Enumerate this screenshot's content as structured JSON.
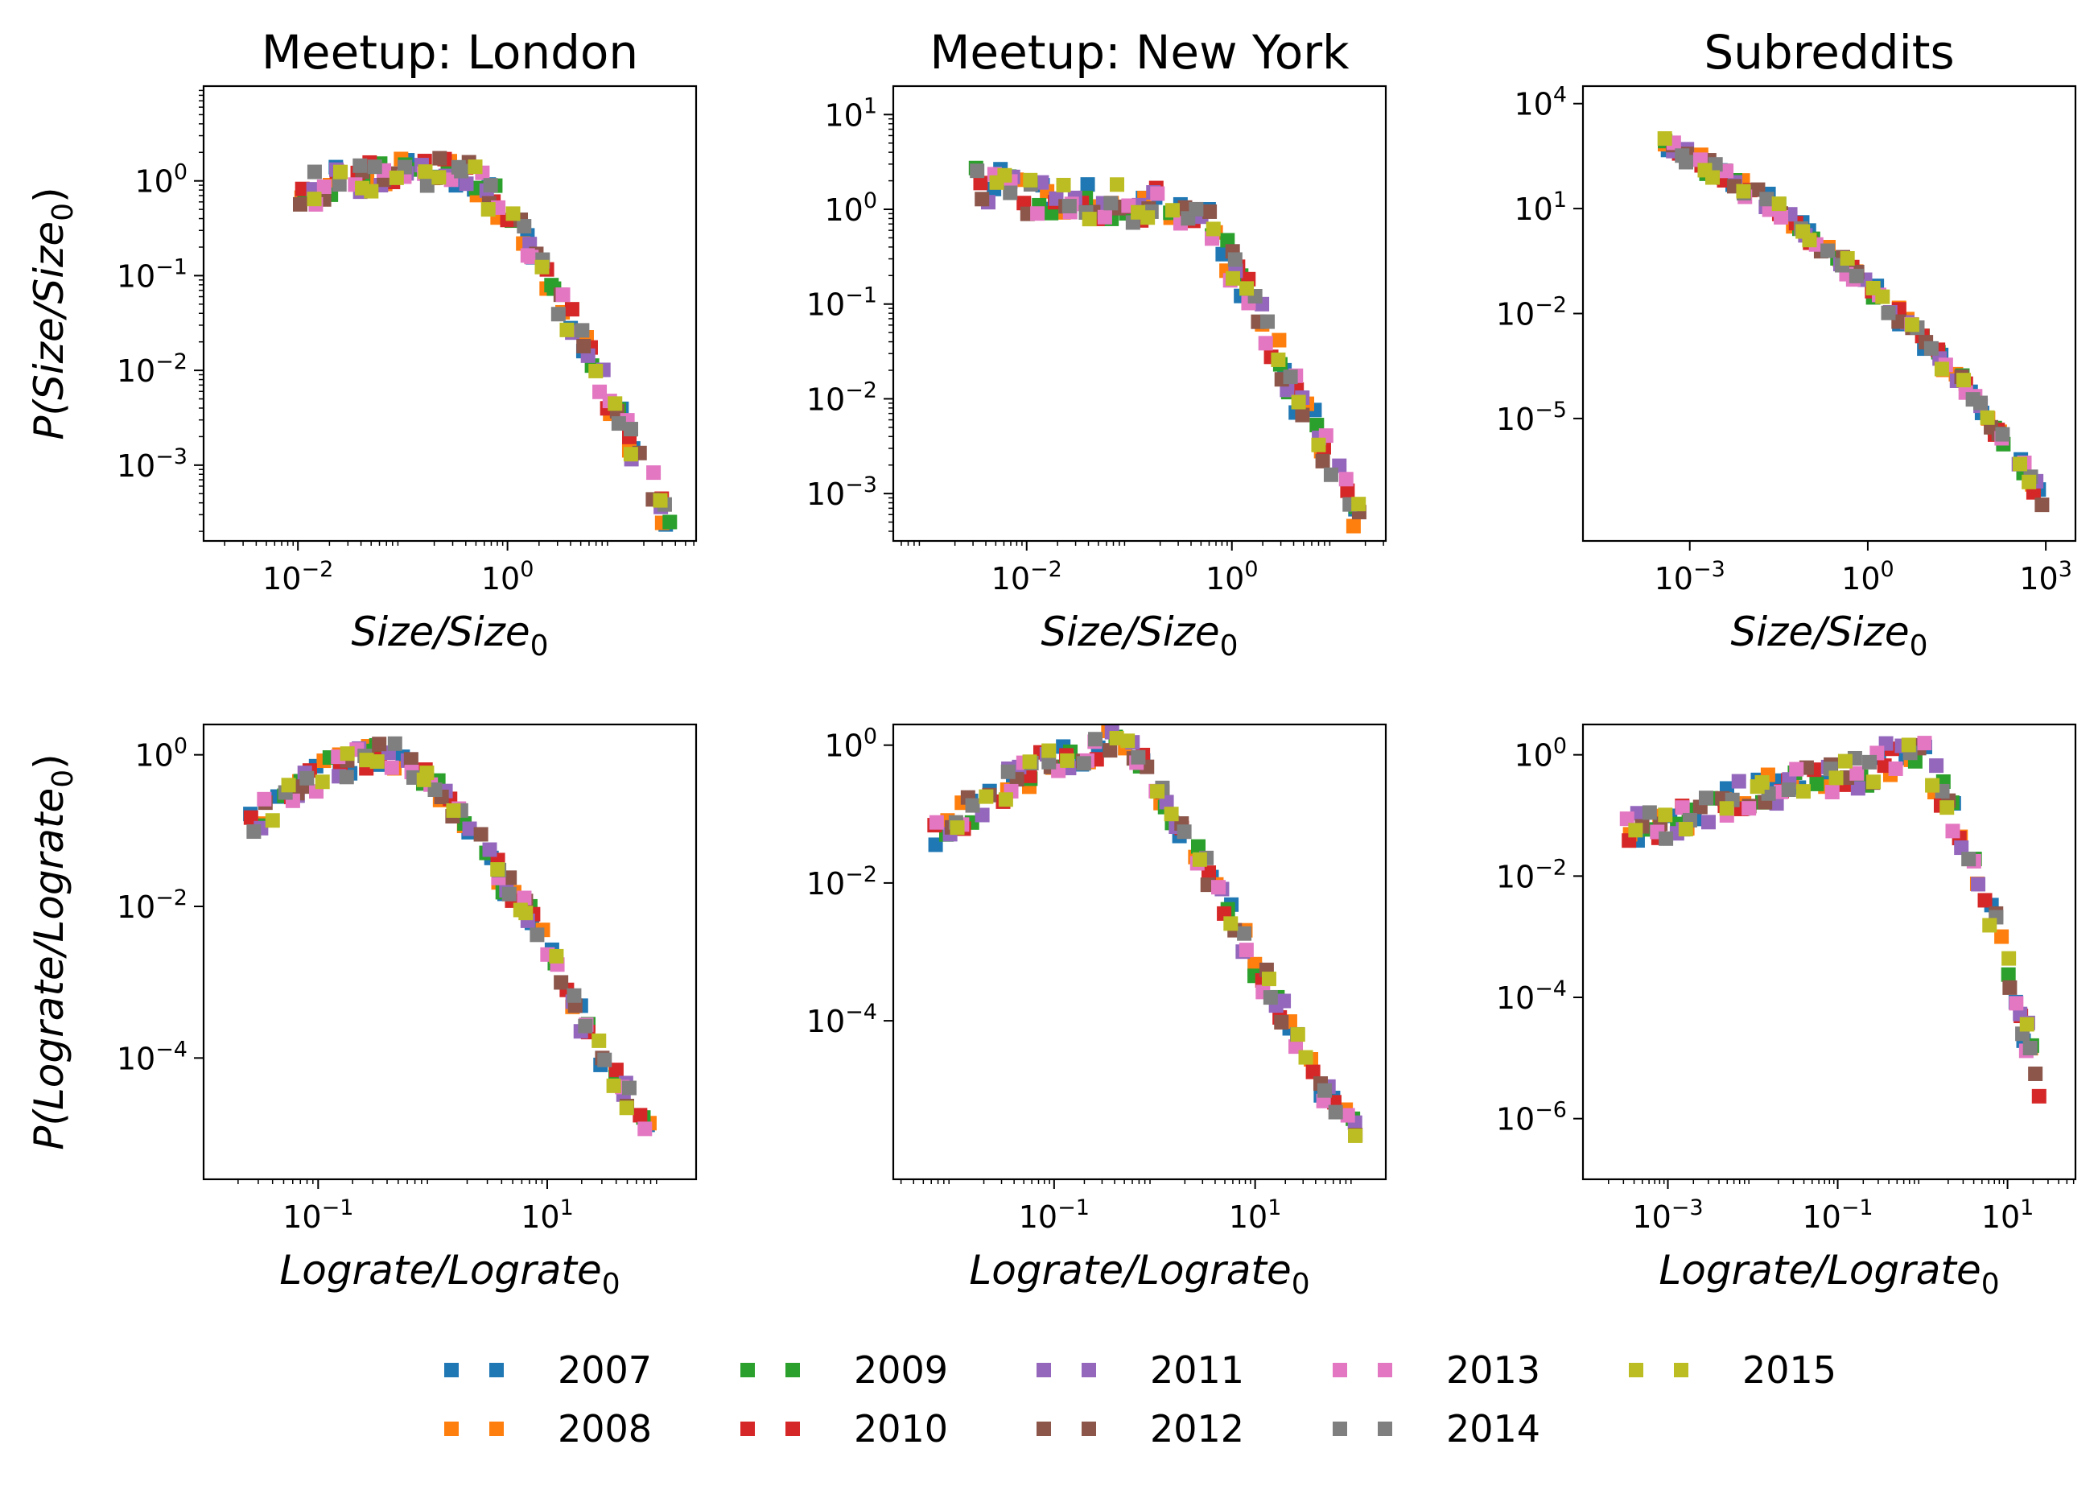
{
  "figure": {
    "legend": {
      "entries": [
        {
          "label": "2007",
          "color": "#1f77b4"
        },
        {
          "label": "2008",
          "color": "#ff7f0e"
        },
        {
          "label": "2009",
          "color": "#2ca02c"
        },
        {
          "label": "2010",
          "color": "#d62728"
        },
        {
          "label": "2011",
          "color": "#9467bd"
        },
        {
          "label": "2012",
          "color": "#8c564b"
        },
        {
          "label": "2013",
          "color": "#e377c2"
        },
        {
          "label": "2014",
          "color": "#7f7f7f"
        },
        {
          "label": "2015",
          "color": "#bcbd22"
        }
      ],
      "placement": "bottom-center",
      "columns": 5
    }
  },
  "chart_data": [
    {
      "type": "scatter",
      "title": "Meetup: London",
      "xlabel": "Size/Size",
      "xlabel_sub": "0",
      "ylabel": "P(Size/Size",
      "ylabel_sub": "0",
      "ylabel_tail": ")",
      "xscale": "log",
      "yscale": "log",
      "xlim_log10": [
        -2.9,
        1.8
      ],
      "ylim_log10": [
        -3.8,
        1.0
      ],
      "xticks_exp": [
        "−2",
        "0"
      ],
      "xticks_pos": [
        -2,
        0
      ],
      "yticks_exp": [
        "−3",
        "−2",
        "−1",
        "0"
      ],
      "yticks_pos": [
        -3,
        -2,
        -1,
        0
      ],
      "curve_log10": {
        "x": [
          -2.0,
          -1.5,
          -1.0,
          -0.6,
          -0.3,
          0.0,
          0.3,
          0.6,
          0.9,
          1.2,
          1.55
        ],
        "y": [
          -0.12,
          0.0,
          0.1,
          0.1,
          0.0,
          -0.35,
          -0.9,
          -1.5,
          -2.1,
          -2.8,
          -3.6
        ]
      },
      "x_range_log10": [
        -2.0,
        1.55
      ],
      "spread": 0.18,
      "grid": false
    },
    {
      "type": "scatter",
      "title": "Meetup: New York",
      "xlabel": "Size/Size",
      "xlabel_sub": "0",
      "ylabel": "",
      "ylabel_sub": "",
      "ylabel_tail": "",
      "xscale": "log",
      "yscale": "log",
      "xlim_log10": [
        -3.3,
        1.5
      ],
      "ylim_log10": [
        -3.5,
        1.3
      ],
      "xticks_exp": [
        "−2",
        "0"
      ],
      "xticks_pos": [
        -2,
        0
      ],
      "yticks_exp": [
        "−3",
        "−2",
        "−1",
        "0",
        "1"
      ],
      "yticks_pos": [
        -3,
        -2,
        -1,
        0,
        1
      ],
      "curve_log10": {
        "x": [
          -2.5,
          -2.0,
          -1.5,
          -1.0,
          -0.5,
          -0.2,
          0.0,
          0.3,
          0.6,
          0.9,
          1.2
        ],
        "y": [
          0.3,
          0.15,
          0.1,
          0.05,
          0.05,
          -0.1,
          -0.6,
          -1.2,
          -1.9,
          -2.5,
          -3.2
        ]
      },
      "x_range_log10": [
        -2.5,
        1.25
      ],
      "spread": 0.2,
      "grid": false
    },
    {
      "type": "scatter",
      "title": "Subreddits",
      "xlabel": "Size/Size",
      "xlabel_sub": "0",
      "ylabel": "",
      "ylabel_sub": "",
      "ylabel_tail": "",
      "xscale": "log",
      "yscale": "log",
      "xlim_log10": [
        -4.8,
        3.5
      ],
      "ylim_log10": [
        -8.5,
        4.5
      ],
      "xticks_exp": [
        "−3",
        "0",
        "3"
      ],
      "xticks_pos": [
        -3,
        0,
        3
      ],
      "yticks_exp": [
        "−5",
        "−2",
        "1",
        "4"
      ],
      "yticks_pos": [
        -5,
        -2,
        1,
        4
      ],
      "curve_log10": {
        "x": [
          -3.5,
          -2.5,
          -1.5,
          -0.5,
          0.5,
          1.5,
          2.5,
          3.0
        ],
        "y": [
          3.0,
          2.0,
          1.0,
          -0.4,
          -2.0,
          -3.8,
          -6.0,
          -7.5
        ]
      },
      "x_range_log10": [
        -3.5,
        3.0
      ],
      "spread": 0.25,
      "grid": false
    },
    {
      "type": "scatter",
      "title": "",
      "xlabel": "Lograte/Lograte",
      "xlabel_sub": "0",
      "ylabel": "P(Lograte/Lograte",
      "ylabel_sub": "0",
      "ylabel_tail": ")",
      "xscale": "log",
      "yscale": "log",
      "xlim_log10": [
        -2.0,
        2.3
      ],
      "ylim_log10": [
        -5.6,
        0.4
      ],
      "xticks_exp": [
        "−1",
        "1"
      ],
      "xticks_pos": [
        -1,
        1
      ],
      "yticks_exp": [
        "−4",
        "−2",
        "0"
      ],
      "yticks_pos": [
        -4,
        -2,
        0
      ],
      "curve_log10": {
        "x": [
          -1.6,
          -1.3,
          -1.0,
          -0.6,
          -0.3,
          0.0,
          0.3,
          0.6,
          0.9,
          1.2,
          1.5,
          1.9
        ],
        "y": [
          -0.9,
          -0.6,
          -0.3,
          0.0,
          0.0,
          -0.3,
          -0.9,
          -1.6,
          -2.3,
          -3.2,
          -4.0,
          -5.0
        ]
      },
      "x_range_log10": [
        -1.6,
        1.9
      ],
      "spread": 0.2,
      "grid": false
    },
    {
      "type": "scatter",
      "title": "",
      "xlabel": "Lograte/Lograte",
      "xlabel_sub": "0",
      "ylabel": "",
      "ylabel_sub": "",
      "ylabel_tail": "",
      "xscale": "log",
      "yscale": "log",
      "xlim_log10": [
        -2.6,
        2.3
      ],
      "ylim_log10": [
        -6.3,
        0.3
      ],
      "xticks_exp": [
        "−1",
        "1"
      ],
      "xticks_pos": [
        -1,
        1
      ],
      "yticks_exp": [
        "−4",
        "−2",
        "0"
      ],
      "yticks_pos": [
        -4,
        -2,
        0
      ],
      "curve_log10": {
        "x": [
          -2.2,
          -1.8,
          -1.4,
          -1.0,
          -0.6,
          -0.3,
          0.0,
          0.4,
          0.8,
          1.2,
          1.6,
          2.0
        ],
        "y": [
          -1.3,
          -0.9,
          -0.5,
          -0.2,
          0.0,
          0.0,
          -0.5,
          -1.5,
          -2.6,
          -3.7,
          -4.8,
          -5.6
        ]
      },
      "x_range_log10": [
        -2.2,
        2.0
      ],
      "spread": 0.22,
      "grid": false
    },
    {
      "type": "scatter",
      "title": "",
      "xlabel": "Lograte/Lograte",
      "xlabel_sub": "0",
      "ylabel": "",
      "ylabel_sub": "",
      "ylabel_tail": "",
      "xscale": "log",
      "yscale": "log",
      "xlim_log10": [
        -4.0,
        1.8
      ],
      "ylim_log10": [
        -7.0,
        0.5
      ],
      "xticks_exp": [
        "−3",
        "−1",
        "1"
      ],
      "xticks_pos": [
        -3,
        -1,
        1
      ],
      "yticks_exp": [
        "−6",
        "−4",
        "−2",
        "0"
      ],
      "yticks_pos": [
        -6,
        -4,
        -2,
        0
      ],
      "curve_log10": {
        "x": [
          -3.5,
          -3.0,
          -2.5,
          -2.0,
          -1.5,
          -1.0,
          -0.6,
          -0.3,
          0.0,
          0.3,
          0.6,
          0.9,
          1.2,
          1.5
        ],
        "y": [
          -1.2,
          -1.1,
          -0.9,
          -0.6,
          -0.5,
          -0.4,
          -0.2,
          0.0,
          0.0,
          -0.8,
          -1.8,
          -3.0,
          -4.5,
          -6.0
        ]
      },
      "x_range_log10": [
        -3.5,
        1.5
      ],
      "spread": 0.28,
      "grid": false
    }
  ]
}
